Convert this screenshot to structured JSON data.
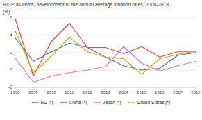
{
  "chart_data": {
    "type": "line",
    "title": "HICP all-items, development of the annual average inflation rates, 2008-2018",
    "y_label": "(%)",
    "x": [
      2008,
      2009,
      2010,
      2011,
      2012,
      2013,
      2014,
      2015,
      2016,
      2017,
      2018
    ],
    "xlim": [
      2008,
      2018
    ],
    "xticks": [
      2008,
      2009,
      2010,
      2011,
      2012,
      2013,
      2014,
      2015,
      2016,
      2017,
      2018
    ],
    "series": [
      {
        "name": "EU (*)",
        "color": "#4472C4",
        "values": [
          3.7,
          1.0,
          2.1,
          3.1,
          2.6,
          1.5,
          0.5,
          0.0,
          0.2,
          1.7,
          2.0
        ]
      },
      {
        "name": "China (*)",
        "color": "#FF4040",
        "values": [
          5.9,
          -0.7,
          3.3,
          5.4,
          2.6,
          2.6,
          1.9,
          2.7,
          1.5,
          2.1,
          2.1
        ]
      },
      {
        "name": "Japan (*)",
        "color": "#FF69B4",
        "values": [
          1.4,
          -1.4,
          -0.7,
          -0.3,
          0.0,
          0.4,
          2.7,
          0.8,
          -0.1,
          0.5,
          1.0
        ]
      },
      {
        "name": "United States (*)",
        "color": "#C8B400",
        "values": [
          4.5,
          -0.3,
          1.6,
          3.8,
          2.1,
          1.5,
          1.3,
          -0.5,
          1.3,
          1.8,
          2.2
        ]
      }
    ],
    "ylim": [
      -2,
      6
    ],
    "yticks": [
      -2,
      0,
      2,
      4,
      6
    ],
    "grid": true,
    "legend": "bottom"
  }
}
